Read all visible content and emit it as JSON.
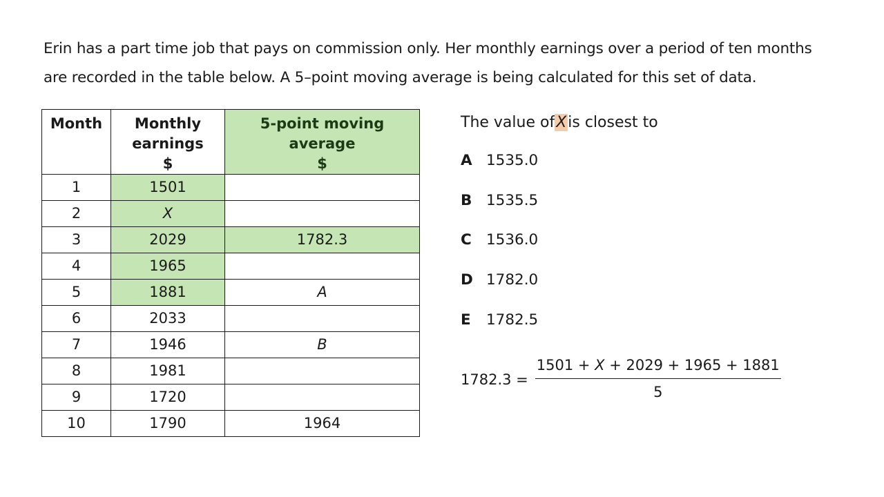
{
  "intro": {
    "line1": "Erin has a part time job that pays on commission only. Her monthly earnings over a period of ten months",
    "line2": "are recorded in the table below. A 5–point moving average is being calculated for this set of data."
  },
  "table": {
    "headers": {
      "month": "Month",
      "earnings_1": "Monthly",
      "earnings_2": "earnings",
      "earnings_3": "$",
      "avg_1": "5-point moving",
      "avg_2": "average",
      "avg_3": "$"
    },
    "rows": [
      {
        "month": "1",
        "earnings": "1501",
        "average": ""
      },
      {
        "month": "2",
        "earnings": "X",
        "average": ""
      },
      {
        "month": "3",
        "earnings": "2029",
        "average": "1782.3"
      },
      {
        "month": "4",
        "earnings": "1965",
        "average": ""
      },
      {
        "month": "5",
        "earnings": "1881",
        "average": "A"
      },
      {
        "month": "6",
        "earnings": "2033",
        "average": ""
      },
      {
        "month": "7",
        "earnings": "1946",
        "average": "B"
      },
      {
        "month": "8",
        "earnings": "1981",
        "average": ""
      },
      {
        "month": "9",
        "earnings": "1720",
        "average": ""
      },
      {
        "month": "10",
        "earnings": "1790",
        "average": "1964"
      }
    ],
    "highlight_color": "#c6e5b4"
  },
  "question": {
    "before": "The value of",
    "variable": "X",
    "after": "is closest to",
    "highlight_color": "#f7cba9"
  },
  "options": [
    {
      "letter": "A",
      "value": "1535.0"
    },
    {
      "letter": "B",
      "value": "1535.5"
    },
    {
      "letter": "C",
      "value": "1536.0"
    },
    {
      "letter": "D",
      "value": "1782.0"
    },
    {
      "letter": "E",
      "value": "1782.5"
    }
  ],
  "formula": {
    "lhs": "1782.3 =",
    "num_part1": "1501 +",
    "num_var": "X",
    "num_part2": "+ 2029 + 1965 + 1881",
    "denominator": "5"
  }
}
